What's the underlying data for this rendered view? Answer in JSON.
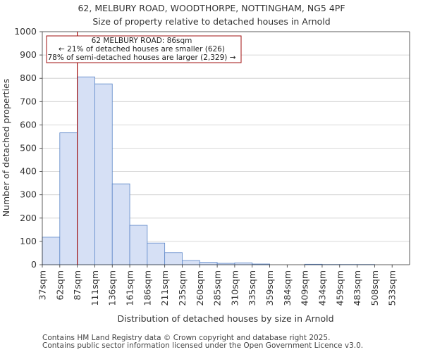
{
  "chart_data": {
    "type": "bar",
    "title": "62, MELBURY ROAD, WOODTHORPE, NOTTINGHAM, NG5 4PF",
    "subtitle": "Size of property relative to detached houses in Arnold",
    "xlabel": "Distribution of detached houses by size in Arnold",
    "ylabel": "Number of detached properties",
    "ylim": [
      0,
      1000
    ],
    "yticks": [
      0,
      100,
      200,
      300,
      400,
      500,
      600,
      700,
      800,
      900,
      1000
    ],
    "categories": [
      "37sqm",
      "62sqm",
      "87sqm",
      "111sqm",
      "136sqm",
      "161sqm",
      "186sqm",
      "211sqm",
      "235sqm",
      "260sqm",
      "285sqm",
      "310sqm",
      "335sqm",
      "359sqm",
      "384sqm",
      "409sqm",
      "434sqm",
      "459sqm",
      "483sqm",
      "508sqm",
      "533sqm"
    ],
    "values": [
      118,
      566,
      806,
      776,
      347,
      169,
      93,
      52,
      18,
      10,
      6,
      8,
      3,
      0,
      0,
      2,
      1,
      1,
      1,
      0,
      0
    ],
    "bar_color": "#d6e0f5",
    "bar_edge_color": "#5b86c8",
    "marker": {
      "value_index": 2.0,
      "color": "#a01010"
    },
    "annotation": {
      "line1": "62 MELBURY ROAD: 86sqm",
      "line2": "← 21% of detached houses are smaller (626)",
      "line3": "78% of semi-detached houses are larger (2,329) →",
      "border_color": "#a01010"
    }
  },
  "footer": {
    "line1": "Contains HM Land Registry data © Crown copyright and database right 2025.",
    "line2": "Contains public sector information licensed under the Open Government Licence v3.0."
  }
}
